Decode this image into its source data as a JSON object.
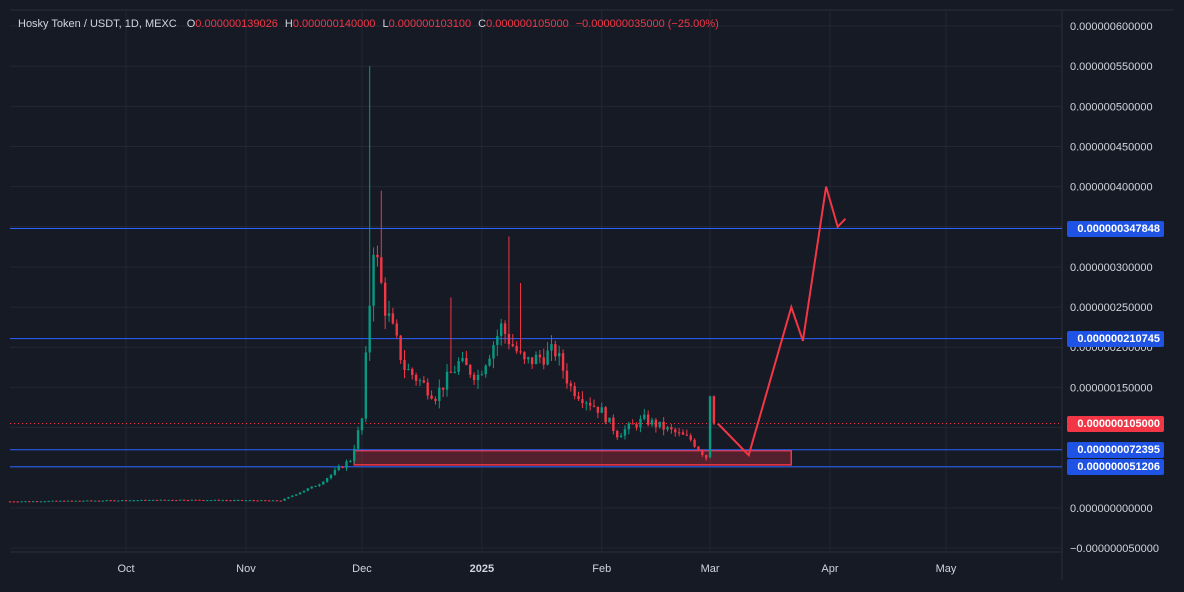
{
  "header": {
    "symbol": "Hosky Token / USDT, 1D, MEXC",
    "open_label": "O",
    "open_value": "0.000000139026",
    "high_label": "H",
    "high_value": "0.000000140000",
    "low_label": "L",
    "low_value": "0.000000103100",
    "close_label": "C",
    "close_value": "0.000000105000",
    "change": "−0.000000035000 (−25.00%)"
  },
  "chart_data": {
    "type": "candlestick",
    "x_axis_labels": [
      {
        "label": "Oct",
        "date": "2024-10-01"
      },
      {
        "label": "Nov",
        "date": "2024-11-01"
      },
      {
        "label": "Dec",
        "date": "2024-12-01"
      },
      {
        "label": "2025",
        "date": "2025-01-01"
      },
      {
        "label": "Feb",
        "date": "2025-02-01"
      },
      {
        "label": "Mar",
        "date": "2025-03-01"
      },
      {
        "label": "Apr",
        "date": "2025-04-01"
      },
      {
        "label": "May",
        "date": "2025-05-01"
      }
    ],
    "xlim": [
      "2024-09-01",
      "2025-05-31"
    ],
    "y_axis_labels": [
      "0.000000600000",
      "0.000000550000",
      "0.000000500000",
      "0.000000450000",
      "0.000000400000",
      "0.000000350000",
      "0.000000300000",
      "0.000000250000",
      "0.000000200000",
      "0.000000150000",
      "0.000000100000",
      "0.000000050000",
      "0.000000000000",
      "−0.000000050000"
    ],
    "y_axis_values": [
      6e-07,
      5.5e-07,
      5e-07,
      4.5e-07,
      4e-07,
      3.5e-07,
      3e-07,
      2.5e-07,
      2e-07,
      1.5e-07,
      1e-07,
      5e-08,
      0,
      -5e-08
    ],
    "ylim": [
      -5.5e-08,
      6.2e-07
    ],
    "grid": true,
    "anchors": [
      {
        "date": "2024-09-01",
        "price": 8e-09
      },
      {
        "date": "2024-10-15",
        "price": 1e-08
      },
      {
        "date": "2024-11-10",
        "price": 9e-09
      },
      {
        "date": "2024-11-20",
        "price": 3e-08
      },
      {
        "date": "2024-11-28",
        "price": 6e-08
      },
      {
        "date": "2024-12-01",
        "price": 1.1e-07
      },
      {
        "date": "2024-12-04",
        "price": 3.3e-07
      },
      {
        "date": "2024-12-07",
        "price": 2.5e-07
      },
      {
        "date": "2024-12-12",
        "price": 1.75e-07
      },
      {
        "date": "2024-12-20",
        "price": 1.4e-07
      },
      {
        "date": "2024-12-26",
        "price": 1.8e-07
      },
      {
        "date": "2024-12-31",
        "price": 1.65e-07
      },
      {
        "date": "2025-01-06",
        "price": 2.25e-07
      },
      {
        "date": "2025-01-12",
        "price": 1.8e-07
      },
      {
        "date": "2025-01-20",
        "price": 1.95e-07
      },
      {
        "date": "2025-01-24",
        "price": 1.5e-07
      },
      {
        "date": "2025-02-01",
        "price": 1.2e-07
      },
      {
        "date": "2025-02-05",
        "price": 9.2e-08
      },
      {
        "date": "2025-02-12",
        "price": 1.1e-07
      },
      {
        "date": "2025-02-24",
        "price": 8.5e-08
      },
      {
        "date": "2025-02-28",
        "price": 6.3e-08
      },
      {
        "date": "2025-03-01",
        "price": 1.39e-07
      },
      {
        "date": "2025-03-02",
        "price": 1.05e-07
      }
    ],
    "spikes": [
      {
        "date": "2024-12-03",
        "high": 5.5e-07
      },
      {
        "date": "2024-12-06",
        "high": 3.95e-07
      },
      {
        "date": "2025-01-08",
        "high": 3.38e-07
      },
      {
        "date": "2025-01-11",
        "high": 2.8e-07
      },
      {
        "date": "2024-12-24",
        "high": 2.62e-07
      }
    ],
    "horizontal_lines": [
      {
        "price": 3.47848e-07,
        "label": "0.000000347848"
      },
      {
        "price": 2.10745e-07,
        "label": "0.000000210745"
      },
      {
        "price": 7.2395e-08,
        "label": "0.000000072395"
      },
      {
        "price": 5.1206e-08,
        "label": "0.000000051206"
      }
    ],
    "current_price": {
      "price": 1.05e-07,
      "label": "0.000000105000"
    },
    "support_zone": {
      "from": "2024-11-29",
      "to": "2025-03-22",
      "top": 7.12e-08,
      "bottom": 5.35e-08
    },
    "projection_path": [
      {
        "date": "2025-03-03",
        "price": 1.05e-07
      },
      {
        "date": "2025-03-11",
        "price": 6.55e-08
      },
      {
        "date": "2025-03-22",
        "price": 2.5e-07
      },
      {
        "date": "2025-03-25",
        "price": 2.08e-07
      },
      {
        "date": "2025-03-31",
        "price": 4e-07
      },
      {
        "date": "2025-04-03",
        "price": 3.5e-07
      },
      {
        "date": "2025-04-05",
        "price": 3.6e-07
      }
    ],
    "colors": {
      "background": "#161a25",
      "grid": "#232733",
      "up": "#089981",
      "down": "#f23645",
      "level_line": "#2962ff",
      "level_tag": "#1e53e5",
      "price_tag": "#f23645",
      "projection": "#f23645",
      "axis_text": "#d1d4dc"
    }
  }
}
